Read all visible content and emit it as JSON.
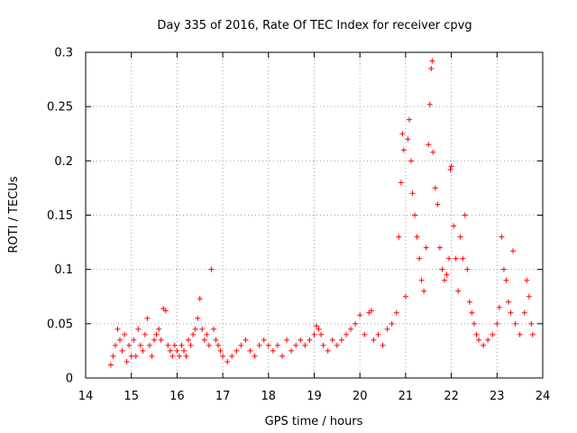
{
  "chart_data": {
    "type": "scatter",
    "title": "Day 335 of 2016, Rate Of TEC Index for receiver cpvg",
    "xlabel": "GPS time / hours",
    "ylabel": "ROTI / TECUs",
    "xlim": [
      14,
      24
    ],
    "ylim": [
      0,
      0.3
    ],
    "xticks": [
      "14",
      "15",
      "16",
      "17",
      "18",
      "19",
      "20",
      "21",
      "22",
      "23",
      "24"
    ],
    "yticks": [
      "0",
      "0.05",
      "0.1",
      "0.15",
      "0.2",
      "0.25",
      "0.3"
    ],
    "grid": true,
    "marker": "+",
    "color": "#ff0000",
    "series": [
      {
        "name": "ROTI",
        "points": [
          [
            14.55,
            0.012
          ],
          [
            14.6,
            0.02
          ],
          [
            14.65,
            0.03
          ],
          [
            14.7,
            0.045
          ],
          [
            14.75,
            0.035
          ],
          [
            14.8,
            0.025
          ],
          [
            14.85,
            0.04
          ],
          [
            14.9,
            0.015
          ],
          [
            14.95,
            0.03
          ],
          [
            15.0,
            0.02
          ],
          [
            15.05,
            0.035
          ],
          [
            15.1,
            0.02
          ],
          [
            15.15,
            0.045
          ],
          [
            15.2,
            0.03
          ],
          [
            15.25,
            0.025
          ],
          [
            15.3,
            0.04
          ],
          [
            15.35,
            0.055
          ],
          [
            15.4,
            0.03
          ],
          [
            15.45,
            0.02
          ],
          [
            15.5,
            0.035
          ],
          [
            15.55,
            0.04
          ],
          [
            15.6,
            0.045
          ],
          [
            15.65,
            0.035
          ],
          [
            15.7,
            0.064
          ],
          [
            15.75,
            0.062
          ],
          [
            15.8,
            0.03
          ],
          [
            15.85,
            0.025
          ],
          [
            15.9,
            0.02
          ],
          [
            15.95,
            0.03
          ],
          [
            16.0,
            0.025
          ],
          [
            16.05,
            0.02
          ],
          [
            16.1,
            0.03
          ],
          [
            16.15,
            0.025
          ],
          [
            16.2,
            0.02
          ],
          [
            16.25,
            0.035
          ],
          [
            16.3,
            0.03
          ],
          [
            16.35,
            0.04
          ],
          [
            16.4,
            0.045
          ],
          [
            16.45,
            0.055
          ],
          [
            16.5,
            0.073
          ],
          [
            16.55,
            0.045
          ],
          [
            16.6,
            0.035
          ],
          [
            16.65,
            0.04
          ],
          [
            16.7,
            0.03
          ],
          [
            16.75,
            0.1
          ],
          [
            16.8,
            0.045
          ],
          [
            16.85,
            0.035
          ],
          [
            16.9,
            0.03
          ],
          [
            16.95,
            0.025
          ],
          [
            17.0,
            0.02
          ],
          [
            17.1,
            0.015
          ],
          [
            17.2,
            0.02
          ],
          [
            17.3,
            0.025
          ],
          [
            17.4,
            0.03
          ],
          [
            17.5,
            0.035
          ],
          [
            17.6,
            0.025
          ],
          [
            17.7,
            0.02
          ],
          [
            17.8,
            0.03
          ],
          [
            17.9,
            0.035
          ],
          [
            18.0,
            0.03
          ],
          [
            18.1,
            0.025
          ],
          [
            18.2,
            0.03
          ],
          [
            18.3,
            0.02
          ],
          [
            18.4,
            0.035
          ],
          [
            18.5,
            0.025
          ],
          [
            18.6,
            0.03
          ],
          [
            18.7,
            0.035
          ],
          [
            18.8,
            0.03
          ],
          [
            18.9,
            0.035
          ],
          [
            19.0,
            0.04
          ],
          [
            19.05,
            0.048
          ],
          [
            19.1,
            0.045
          ],
          [
            19.15,
            0.04
          ],
          [
            19.2,
            0.03
          ],
          [
            19.3,
            0.025
          ],
          [
            19.4,
            0.035
          ],
          [
            19.5,
            0.03
          ],
          [
            19.6,
            0.035
          ],
          [
            19.7,
            0.04
          ],
          [
            19.8,
            0.045
          ],
          [
            19.9,
            0.05
          ],
          [
            20.0,
            0.058
          ],
          [
            20.1,
            0.04
          ],
          [
            20.2,
            0.06
          ],
          [
            20.25,
            0.062
          ],
          [
            20.3,
            0.035
          ],
          [
            20.4,
            0.04
          ],
          [
            20.5,
            0.03
          ],
          [
            20.6,
            0.045
          ],
          [
            20.7,
            0.05
          ],
          [
            20.8,
            0.06
          ],
          [
            20.85,
            0.13
          ],
          [
            20.9,
            0.18
          ],
          [
            20.93,
            0.225
          ],
          [
            20.96,
            0.21
          ],
          [
            21.0,
            0.075
          ],
          [
            21.05,
            0.22
          ],
          [
            21.08,
            0.238
          ],
          [
            21.12,
            0.2
          ],
          [
            21.15,
            0.17
          ],
          [
            21.2,
            0.15
          ],
          [
            21.25,
            0.13
          ],
          [
            21.3,
            0.11
          ],
          [
            21.35,
            0.09
          ],
          [
            21.4,
            0.08
          ],
          [
            21.45,
            0.12
          ],
          [
            21.5,
            0.215
          ],
          [
            21.53,
            0.252
          ],
          [
            21.56,
            0.285
          ],
          [
            21.58,
            0.292
          ],
          [
            21.6,
            0.208
          ],
          [
            21.65,
            0.175
          ],
          [
            21.7,
            0.16
          ],
          [
            21.75,
            0.12
          ],
          [
            21.8,
            0.1
          ],
          [
            21.85,
            0.09
          ],
          [
            21.9,
            0.095
          ],
          [
            21.95,
            0.11
          ],
          [
            21.98,
            0.192
          ],
          [
            22.0,
            0.195
          ],
          [
            22.05,
            0.14
          ],
          [
            22.1,
            0.11
          ],
          [
            22.15,
            0.08
          ],
          [
            22.2,
            0.13
          ],
          [
            22.25,
            0.11
          ],
          [
            22.3,
            0.15
          ],
          [
            22.35,
            0.1
          ],
          [
            22.4,
            0.07
          ],
          [
            22.45,
            0.06
          ],
          [
            22.5,
            0.05
          ],
          [
            22.55,
            0.04
          ],
          [
            22.6,
            0.035
          ],
          [
            22.7,
            0.03
          ],
          [
            22.8,
            0.035
          ],
          [
            22.9,
            0.04
          ],
          [
            23.0,
            0.05
          ],
          [
            23.05,
            0.065
          ],
          [
            23.1,
            0.13
          ],
          [
            23.15,
            0.1
          ],
          [
            23.2,
            0.09
          ],
          [
            23.25,
            0.07
          ],
          [
            23.3,
            0.06
          ],
          [
            23.35,
            0.117
          ],
          [
            23.4,
            0.05
          ],
          [
            23.5,
            0.04
          ],
          [
            23.6,
            0.06
          ],
          [
            23.65,
            0.09
          ],
          [
            23.7,
            0.075
          ],
          [
            23.75,
            0.05
          ],
          [
            23.78,
            0.04
          ]
        ]
      }
    ]
  }
}
